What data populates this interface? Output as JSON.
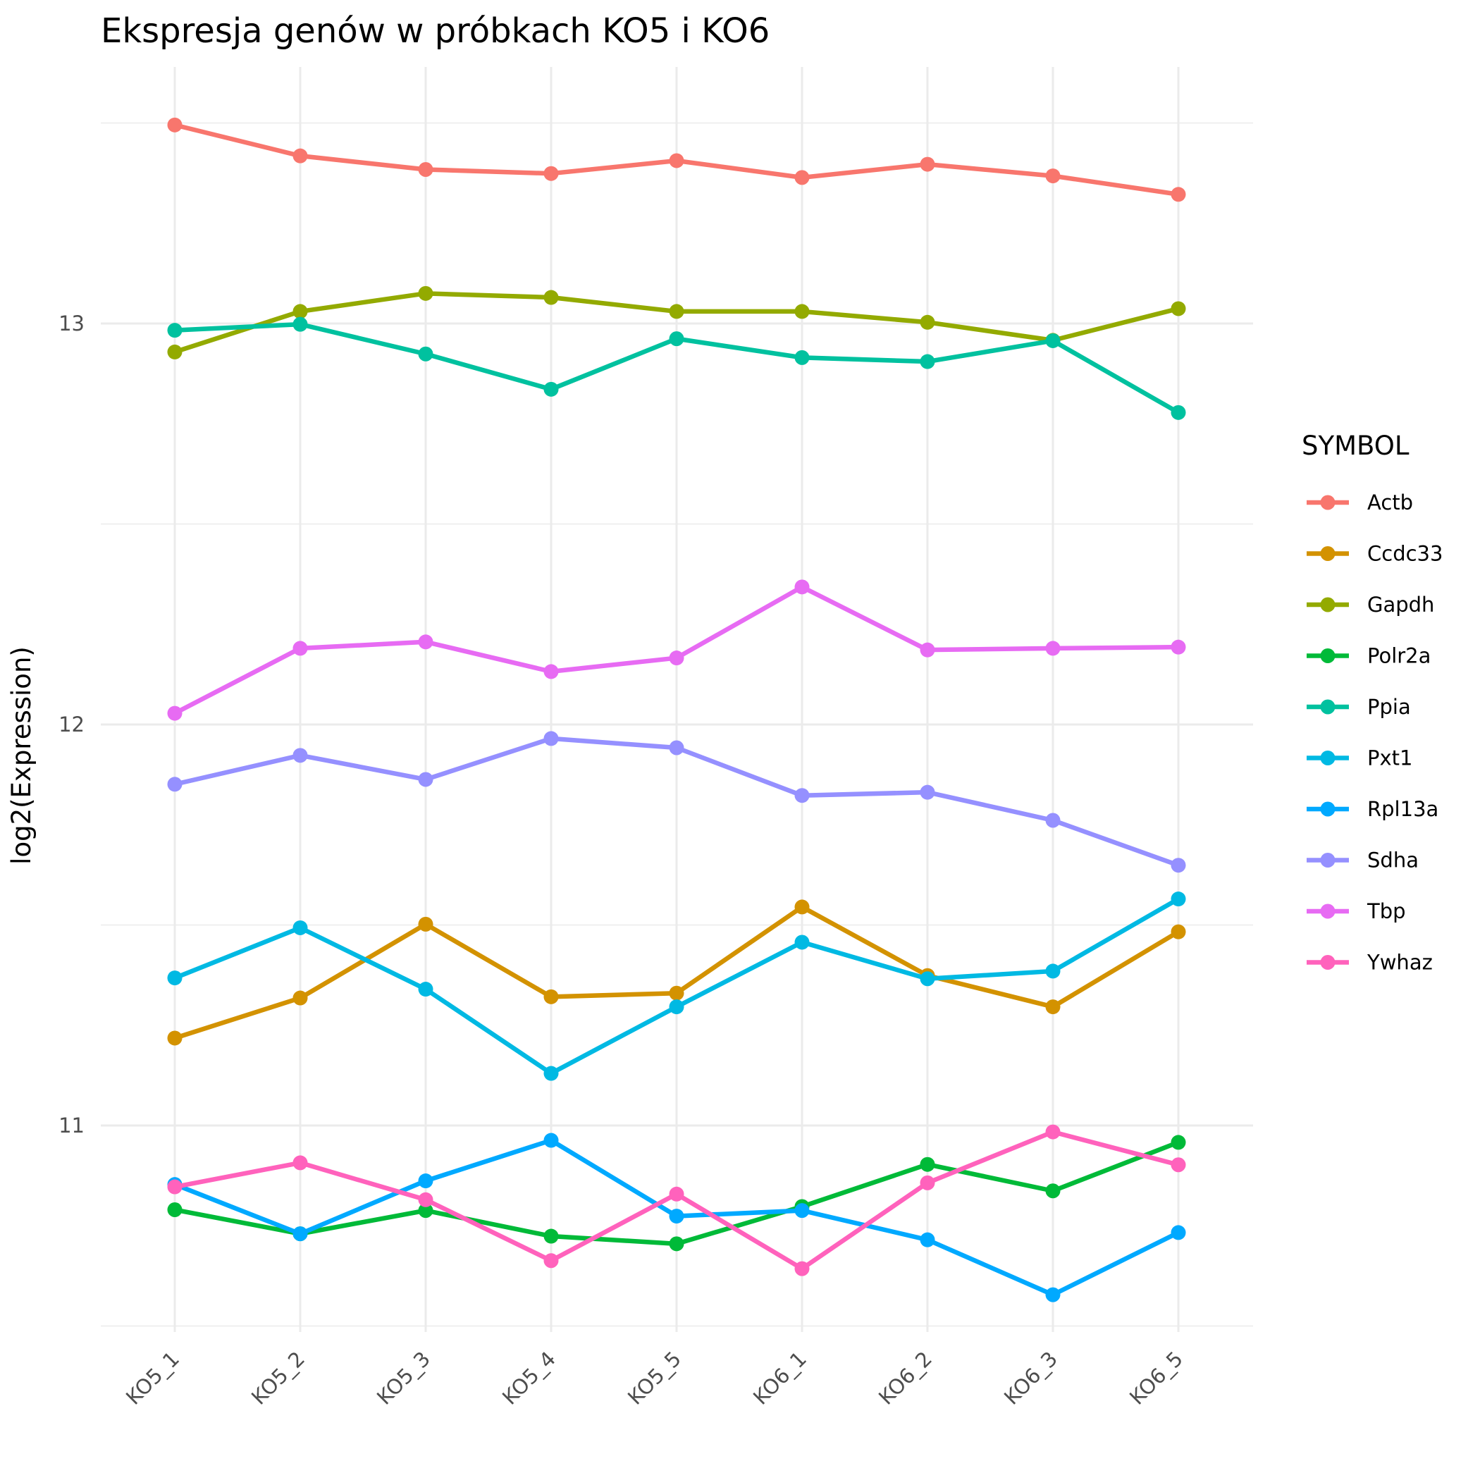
{
  "chart_data": {
    "type": "line",
    "title": "Ekspresja genów w próbkach KO5 i KO6",
    "xlabel": "",
    "ylabel": "log2(Expression)",
    "categories": [
      "KO5_1",
      "KO5_2",
      "KO5_3",
      "KO5_4",
      "KO5_5",
      "KO6_1",
      "KO6_2",
      "KO6_3",
      "KO6_5"
    ],
    "yticks": [
      11,
      12,
      13
    ],
    "ylim": [
      10.5,
      13.5
    ],
    "grid": true,
    "legend_title": "SYMBOL",
    "legend_position": "right",
    "series": [
      {
        "name": "Actb",
        "color": "#F8766D",
        "values": [
          13.495,
          13.418,
          13.384,
          13.374,
          13.406,
          13.364,
          13.397,
          13.368,
          13.322
        ]
      },
      {
        "name": "Ccdc33",
        "color": "#D39200",
        "values": [
          11.218,
          11.318,
          11.502,
          11.321,
          11.33,
          11.545,
          11.374,
          11.296,
          11.483
        ]
      },
      {
        "name": "Gapdh",
        "color": "#93AA00",
        "values": [
          12.929,
          13.03,
          13.075,
          13.065,
          13.03,
          13.03,
          13.003,
          12.958,
          13.037
        ]
      },
      {
        "name": "Polr2a",
        "color": "#00BA38",
        "values": [
          10.79,
          10.73,
          10.788,
          10.724,
          10.705,
          10.798,
          10.903,
          10.837,
          10.958
        ]
      },
      {
        "name": "Ppia",
        "color": "#00C19F",
        "values": [
          12.983,
          12.998,
          12.924,
          12.836,
          12.962,
          12.915,
          12.905,
          12.957,
          12.778
        ]
      },
      {
        "name": "Pxt1",
        "color": "#00B9E3",
        "values": [
          11.368,
          11.493,
          11.34,
          11.13,
          11.296,
          11.457,
          11.366,
          11.385,
          11.565
        ]
      },
      {
        "name": "Rpl13a",
        "color": "#00A9FF",
        "values": [
          10.853,
          10.73,
          10.862,
          10.963,
          10.774,
          10.788,
          10.715,
          10.578,
          10.733
        ]
      },
      {
        "name": "Sdha",
        "color": "#9590FF",
        "values": [
          11.851,
          11.923,
          11.863,
          11.965,
          11.942,
          11.823,
          11.831,
          11.761,
          11.649
        ]
      },
      {
        "name": "Tbp",
        "color": "#E76BF3",
        "values": [
          12.028,
          12.19,
          12.206,
          12.132,
          12.166,
          12.343,
          12.186,
          12.19,
          12.193
        ]
      },
      {
        "name": "Ywhaz",
        "color": "#FF62BC",
        "values": [
          10.847,
          10.907,
          10.815,
          10.663,
          10.829,
          10.643,
          10.857,
          10.984,
          10.902
        ]
      }
    ]
  }
}
